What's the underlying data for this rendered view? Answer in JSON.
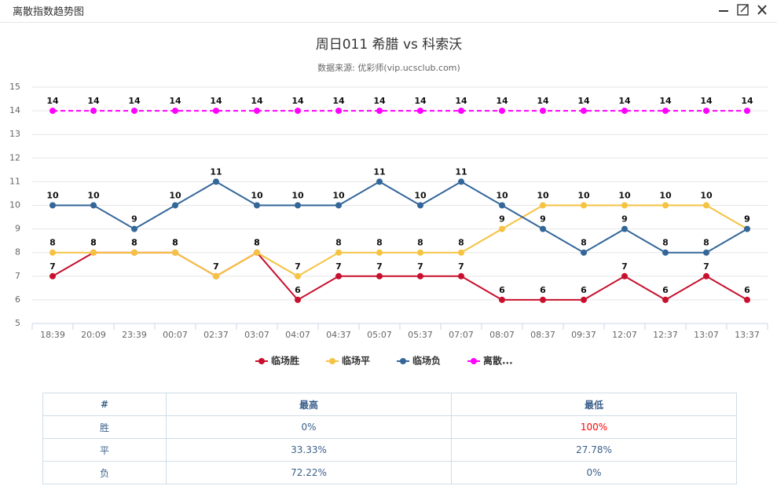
{
  "header": {
    "title": "离散指数趋势图"
  },
  "chart_data": {
    "type": "line",
    "title": "周日011 希腊 vs 科索沃",
    "subtitle": "数据来源: 优彩师(vip.ucsclub.com)",
    "categories": [
      "18:39",
      "20:09",
      "23:39",
      "00:07",
      "02:37",
      "03:07",
      "04:07",
      "04:37",
      "05:07",
      "05:37",
      "07:07",
      "08:07",
      "08:37",
      "09:37",
      "12:07",
      "12:37",
      "13:07",
      "13:37"
    ],
    "series": [
      {
        "name": "临场胜",
        "color": "#c8102e",
        "values": [
          7,
          8,
          8,
          8,
          7,
          8,
          6,
          7,
          7,
          7,
          7,
          6,
          6,
          6,
          7,
          6,
          7,
          6
        ]
      },
      {
        "name": "临场平",
        "color": "#f5c242",
        "values": [
          8,
          8,
          8,
          8,
          7,
          8,
          7,
          8,
          8,
          8,
          8,
          9,
          10,
          10,
          10,
          10,
          10,
          9
        ]
      },
      {
        "name": "临场负",
        "color": "#336699",
        "values": [
          10,
          10,
          9,
          10,
          11,
          10,
          10,
          10,
          11,
          10,
          11,
          10,
          9,
          8,
          9,
          8,
          8,
          9
        ]
      },
      {
        "name": "离散...",
        "color": "#ff00ff",
        "line_style": "dashed",
        "values": [
          14,
          14,
          14,
          14,
          14,
          14,
          14,
          14,
          14,
          14,
          14,
          14,
          14,
          14,
          14,
          14,
          14,
          14
        ]
      }
    ],
    "ylim": [
      5,
      15
    ],
    "yticks": [
      5,
      6,
      7,
      8,
      9,
      10,
      11,
      12,
      13,
      14,
      15
    ],
    "grid": true
  },
  "table": {
    "columns": [
      "#",
      "最高",
      "最低"
    ],
    "rows": [
      [
        "胜",
        "0%",
        "100%"
      ],
      [
        "平",
        "33.33%",
        "27.78%"
      ],
      [
        "负",
        "72.22%",
        "0%"
      ]
    ]
  }
}
